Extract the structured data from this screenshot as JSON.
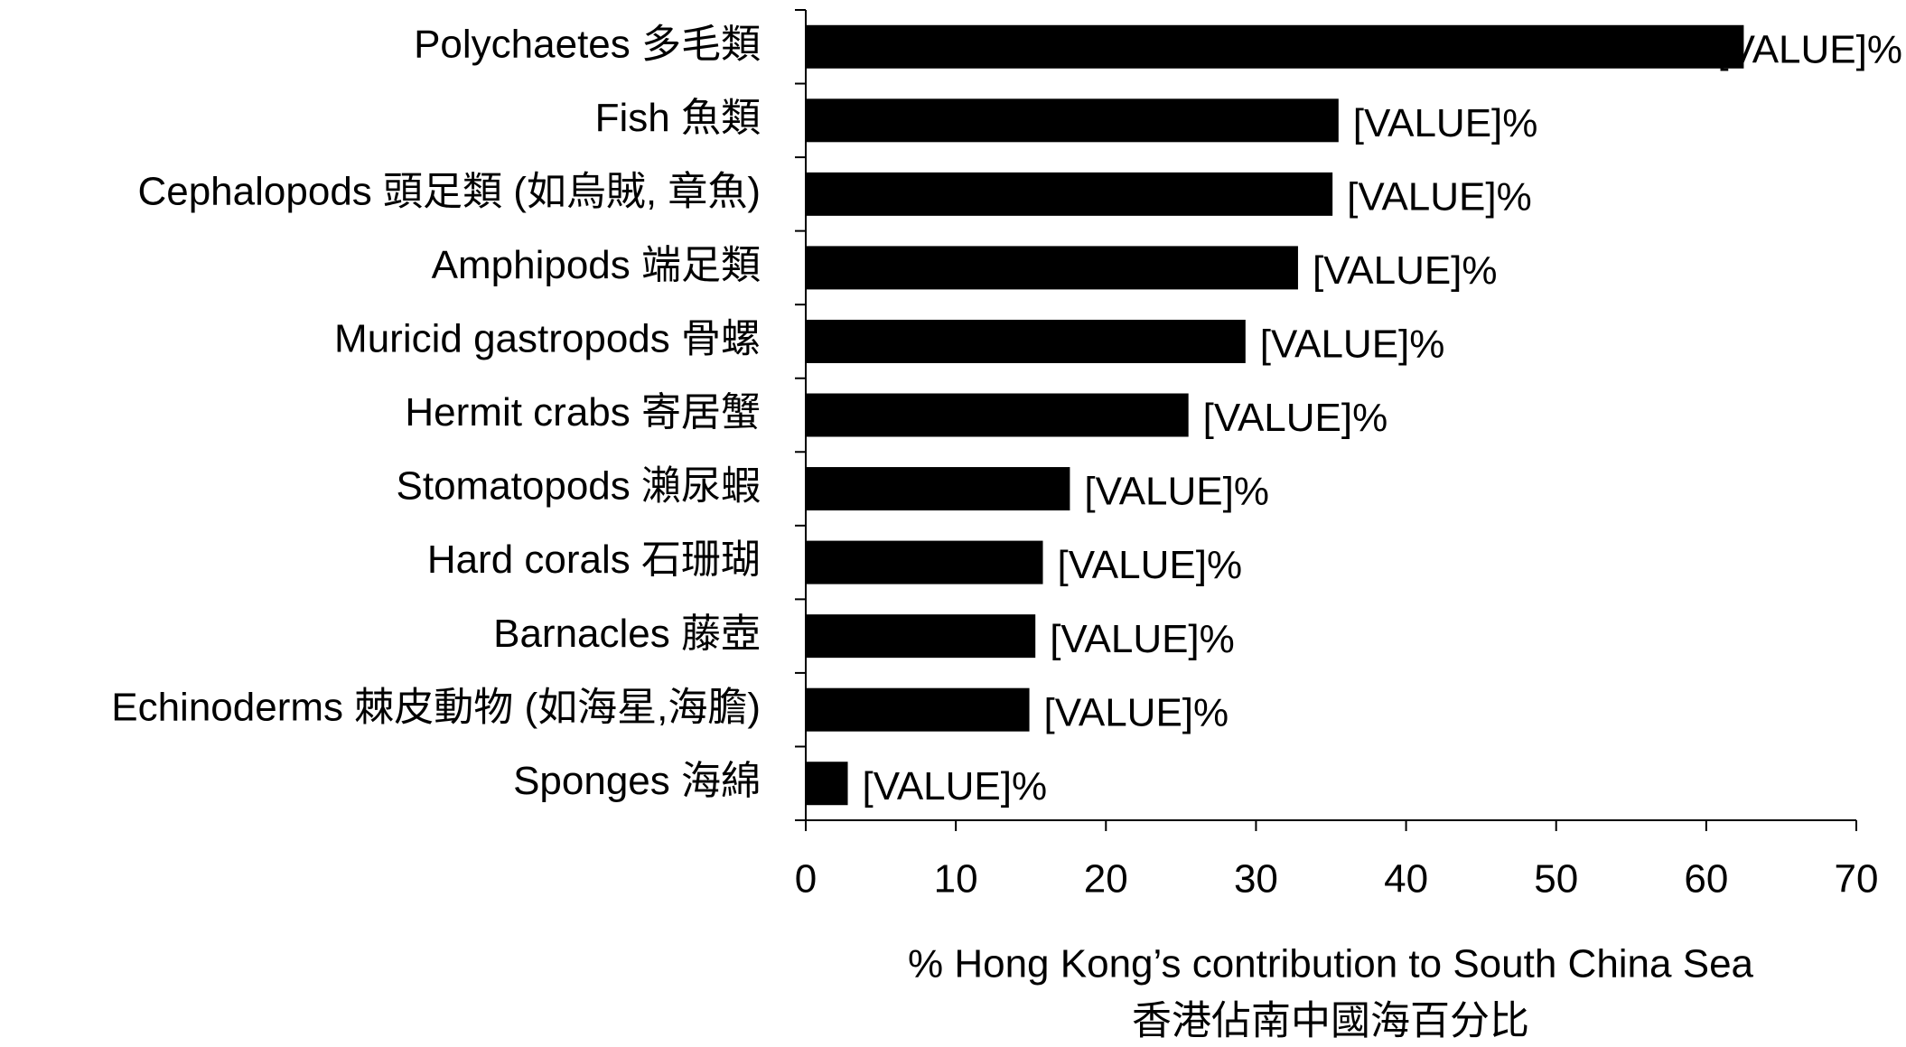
{
  "chart_data": {
    "type": "barh",
    "categories": [
      "Polychaetes 多毛類",
      "Fish 魚類",
      "Cephalopods 頭足類 (如烏賊, 章魚)",
      "Amphipods 端足類",
      "Muricid gastropods 骨螺",
      "Hermit crabs 寄居蟹",
      "Stomatopods 瀨尿蝦",
      "Hard corals 石珊瑚",
      "Barnacles 藤壺",
      "Echinoderms 棘皮動物 (如海星,海膽)",
      "Sponges 海綿"
    ],
    "values": [
      62.5,
      35.5,
      35.1,
      32.8,
      29.3,
      25.5,
      17.6,
      15.8,
      15.3,
      14.9,
      2.8
    ],
    "value_labels": [
      "[VALUE]%",
      "[VALUE]%",
      "[VALUE]%",
      "[VALUE]%",
      "[VALUE]%",
      "[VALUE]%",
      "[VALUE]%",
      "[VALUE]%",
      "[VALUE]%",
      "[VALUE]%",
      "[VALUE]%"
    ],
    "color": "#000000",
    "xlim": [
      0,
      70
    ],
    "xticks": [
      0,
      10,
      20,
      30,
      40,
      50,
      60,
      70
    ],
    "xlabel": [
      "% Hong Kong’s contribution to South China Sea",
      "香港佔南中國海百分比"
    ],
    "grid": false
  }
}
